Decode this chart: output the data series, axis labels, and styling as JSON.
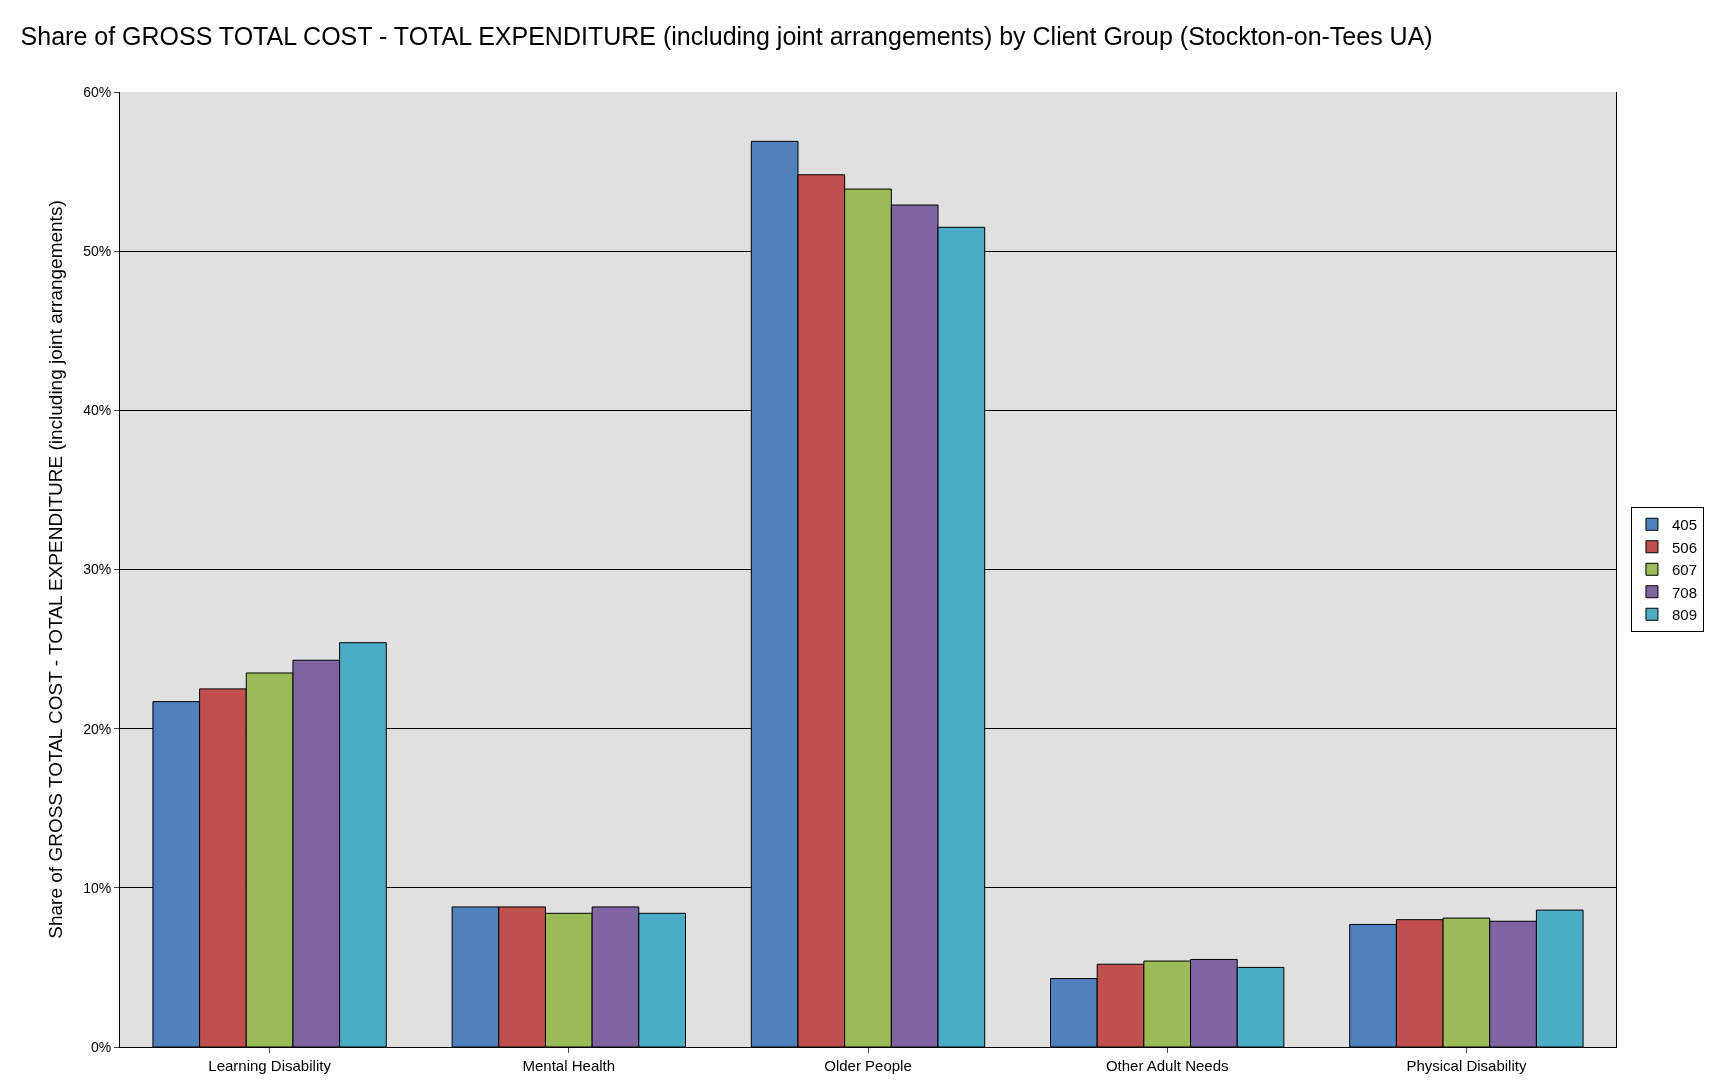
{
  "chart_data": {
    "type": "bar",
    "title": "Share of GROSS TOTAL COST - TOTAL EXPENDITURE (including joint arrangements) by Client Group (Stockton-on-Tees UA)",
    "ylabel": "Share of GROSS TOTAL COST - TOTAL EXPENDITURE (including joint arrangements)",
    "categories": [
      "Learning Disability",
      "Mental Health",
      "Older People",
      "Other Adult Needs",
      "Physical Disability"
    ],
    "series": [
      {
        "name": "405",
        "color": "#4f81bd",
        "values": [
          21.7,
          8.8,
          56.9,
          4.3,
          7.7
        ]
      },
      {
        "name": "506",
        "color": "#c0504d",
        "values": [
          22.5,
          8.8,
          54.8,
          5.2,
          8.0
        ]
      },
      {
        "name": "607",
        "color": "#9bbb59",
        "values": [
          23.5,
          8.4,
          53.9,
          5.4,
          8.1
        ]
      },
      {
        "name": "708",
        "color": "#8064a2",
        "values": [
          24.3,
          8.8,
          52.9,
          5.5,
          7.9
        ]
      },
      {
        "name": "809",
        "color": "#4bacc6",
        "values": [
          25.4,
          8.4,
          51.5,
          5.0,
          8.6
        ]
      }
    ],
    "ylim": [
      0,
      60
    ],
    "yticks": [
      {
        "value": 0,
        "label": "0%"
      },
      {
        "value": 10,
        "label": "10%"
      },
      {
        "value": 20,
        "label": "20%"
      },
      {
        "value": 30,
        "label": "30%"
      },
      {
        "value": 40,
        "label": "40%"
      },
      {
        "value": 50,
        "label": "50%"
      },
      {
        "value": 60,
        "label": "60%"
      }
    ],
    "grid": "y",
    "legend": "right"
  }
}
